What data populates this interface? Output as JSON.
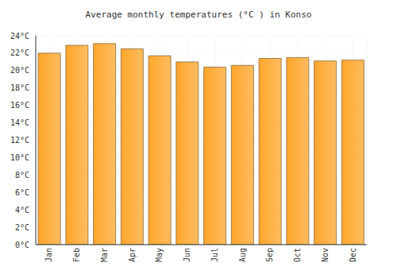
{
  "chart_data": {
    "type": "bar",
    "title": "Average monthly temperatures (°C ) in Konso",
    "categories": [
      "Jan",
      "Feb",
      "Mar",
      "Apr",
      "May",
      "Jun",
      "Jul",
      "Aug",
      "Sep",
      "Oct",
      "Nov",
      "Dec"
    ],
    "values": [
      22.0,
      22.9,
      23.1,
      22.5,
      21.7,
      21.0,
      20.4,
      20.6,
      21.4,
      21.5,
      21.1,
      21.2
    ],
    "color": "#ffa62b",
    "ylim": [
      0,
      24
    ],
    "yticks": [
      {
        "value": 0,
        "label": "0°C"
      },
      {
        "value": 2,
        "label": "2°C"
      },
      {
        "value": 4,
        "label": "4°C"
      },
      {
        "value": 6,
        "label": "6°C"
      },
      {
        "value": 8,
        "label": "8°C"
      },
      {
        "value": 10,
        "label": "10°C"
      },
      {
        "value": 12,
        "label": "12°C"
      },
      {
        "value": 14,
        "label": "14°C"
      },
      {
        "value": 16,
        "label": "16°C"
      },
      {
        "value": 18,
        "label": "18°C"
      },
      {
        "value": 20,
        "label": "20°C"
      },
      {
        "value": 22,
        "label": "22°C"
      },
      {
        "value": 24,
        "label": "24°C"
      }
    ],
    "grid": true
  }
}
